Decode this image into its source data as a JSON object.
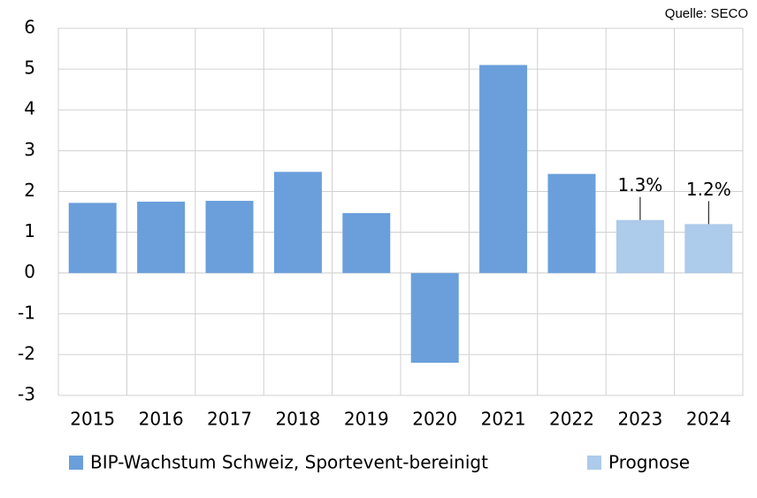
{
  "chart_data": {
    "type": "bar",
    "source": "Quelle: SECO",
    "categories": [
      "2015",
      "2016",
      "2017",
      "2018",
      "2019",
      "2020",
      "2021",
      "2022",
      "2023",
      "2024"
    ],
    "series": [
      {
        "name": "BIP-Wachstum Schweiz, Sportevent-bereinigt",
        "color": "#6a9fdb",
        "values": [
          1.72,
          1.75,
          1.77,
          2.48,
          1.47,
          -2.2,
          5.1,
          2.43,
          null,
          null
        ]
      },
      {
        "name": "Prognose",
        "color": "#adcbea",
        "values": [
          null,
          null,
          null,
          null,
          null,
          null,
          null,
          null,
          1.3,
          1.2
        ],
        "value_labels": [
          null,
          null,
          null,
          null,
          null,
          null,
          null,
          null,
          "1.3%",
          "1.2%"
        ]
      }
    ],
    "ylim": [
      -3,
      6
    ],
    "yticks": [
      -3,
      -2,
      -1,
      0,
      1,
      2,
      3,
      4,
      5,
      6
    ],
    "grid": true
  }
}
